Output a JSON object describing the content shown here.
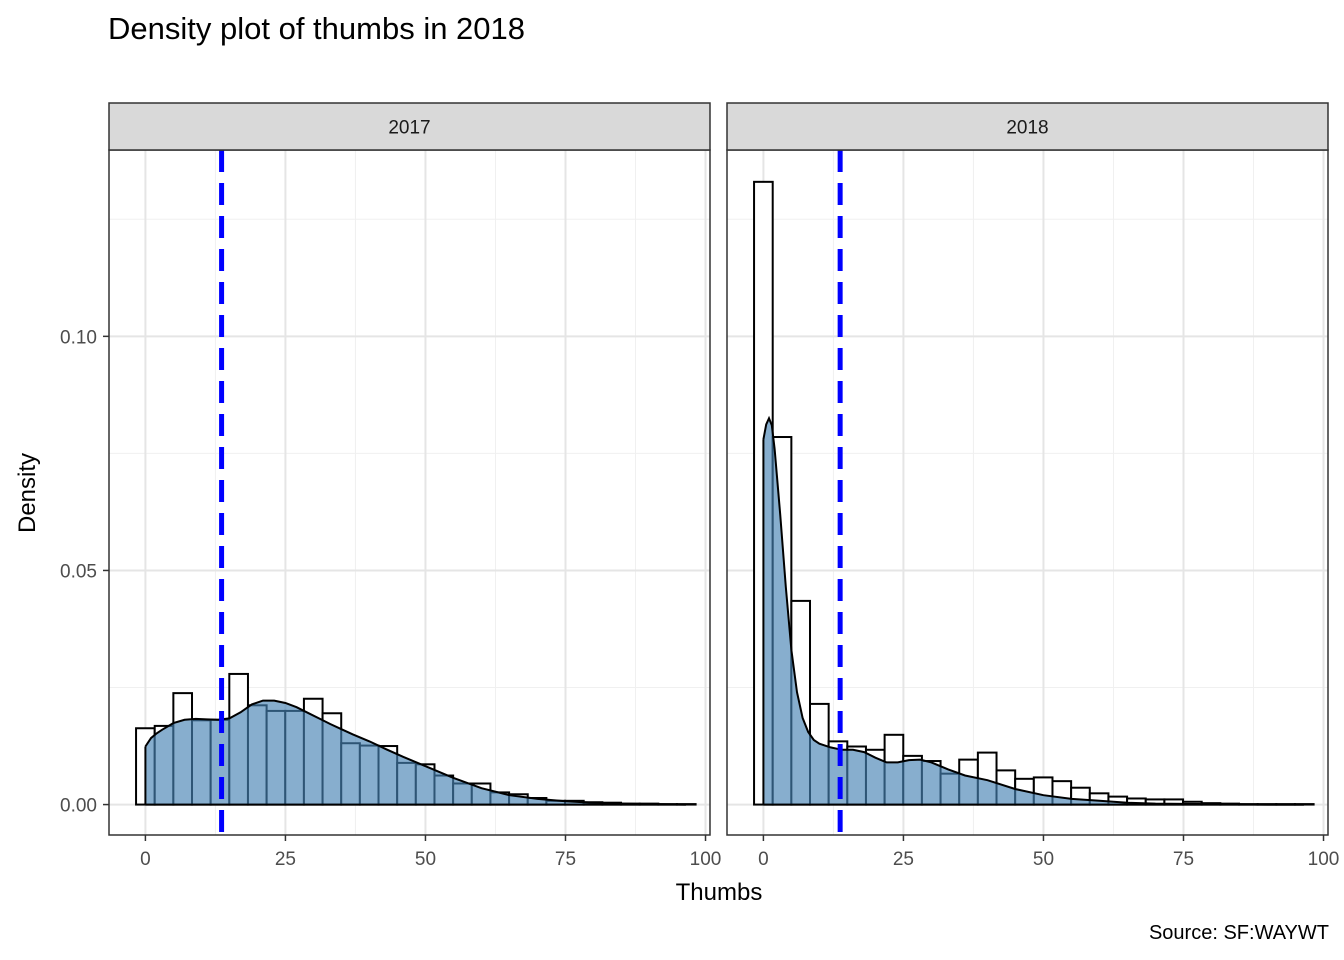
{
  "chart_data": {
    "type": "histogram-density",
    "title": "Density plot of thumbs in 2018",
    "xlabel": "Thumbs",
    "ylabel": "Density",
    "caption": "Source: SF:WAYWT",
    "xlim": [
      -6.5,
      100.8
    ],
    "ylim": [
      -0.0065,
      0.1398
    ],
    "x_ticks": [
      0,
      25,
      50,
      75,
      100
    ],
    "y_ticks": [
      0.0,
      0.05,
      0.1
    ],
    "y_tick_labels": [
      "0.00",
      "0.05",
      "0.10"
    ],
    "x_minor": [
      12.5,
      37.5,
      62.5,
      87.5
    ],
    "y_minor": [
      0.025,
      0.075,
      0.125
    ],
    "grid": true,
    "fill_color": "#4682b4",
    "mean_line_color": "#0000ff",
    "panels": [
      {
        "label": "2017",
        "mean_line_x": 13.6,
        "histogram": {
          "bin_width": 3.33,
          "start": -1.67,
          "densities": [
            0.0163,
            0.0168,
            0.0238,
            0.018,
            0.0181,
            0.0279,
            0.0212,
            0.02,
            0.02,
            0.0226,
            0.0195,
            0.0131,
            0.0126,
            0.0125,
            0.0089,
            0.0086,
            0.0062,
            0.0045,
            0.0045,
            0.0026,
            0.0022,
            0.0014,
            0.0008,
            0.0008,
            0.0005,
            0.0004,
            0.0002,
            0.0002,
            0.0001,
            0.0001
          ]
        },
        "density_curve": {
          "x": [
            0,
            1,
            2,
            3,
            5,
            7,
            9,
            11,
            13,
            15,
            17,
            19,
            21,
            23,
            25,
            27,
            29,
            31,
            33,
            35,
            37,
            40,
            43,
            46,
            50,
            55,
            60,
            65,
            70,
            75,
            80,
            85,
            90,
            96.5
          ],
          "y": [
            0.0124,
            0.0142,
            0.0152,
            0.016,
            0.0174,
            0.0181,
            0.0183,
            0.0182,
            0.0181,
            0.0184,
            0.0197,
            0.0214,
            0.0222,
            0.0222,
            0.0217,
            0.0208,
            0.0196,
            0.0184,
            0.0172,
            0.0161,
            0.015,
            0.0135,
            0.0118,
            0.0102,
            0.0082,
            0.0057,
            0.0035,
            0.002,
            0.0012,
            0.0007,
            0.0004,
            0.0002,
            0.0001,
            0.0
          ]
        }
      },
      {
        "label": "2018",
        "mean_line_x": 13.7,
        "histogram": {
          "bin_width": 3.33,
          "start": -1.67,
          "densities": [
            0.133,
            0.0785,
            0.0435,
            0.0215,
            0.0135,
            0.0124,
            0.0117,
            0.0149,
            0.0104,
            0.0093,
            0.0066,
            0.0096,
            0.0111,
            0.0073,
            0.0055,
            0.0058,
            0.005,
            0.0036,
            0.0024,
            0.0017,
            0.0013,
            0.0011,
            0.0011,
            0.0006,
            0.0003,
            0.0002,
            0.0001,
            0.0001,
            0.0001,
            0.0001
          ]
        },
        "density_curve": {
          "x": [
            0,
            0.5,
            1,
            1.5,
            2,
            3,
            4,
            5,
            6,
            7,
            8,
            9,
            10,
            12,
            14,
            16,
            18,
            20,
            22,
            24,
            26,
            28,
            30,
            33,
            36,
            40,
            45,
            50,
            55,
            60,
            65,
            70,
            80,
            90,
            96.5
          ],
          "y": [
            0.078,
            0.0812,
            0.0825,
            0.081,
            0.076,
            0.062,
            0.0465,
            0.033,
            0.024,
            0.0185,
            0.0155,
            0.0138,
            0.013,
            0.0122,
            0.0117,
            0.0117,
            0.0112,
            0.01,
            0.009,
            0.009,
            0.0095,
            0.0096,
            0.009,
            0.0075,
            0.0062,
            0.0052,
            0.0033,
            0.002,
            0.0012,
            0.0008,
            0.0004,
            0.0002,
            0.0001,
            0.0,
            0.0
          ]
        }
      }
    ]
  }
}
